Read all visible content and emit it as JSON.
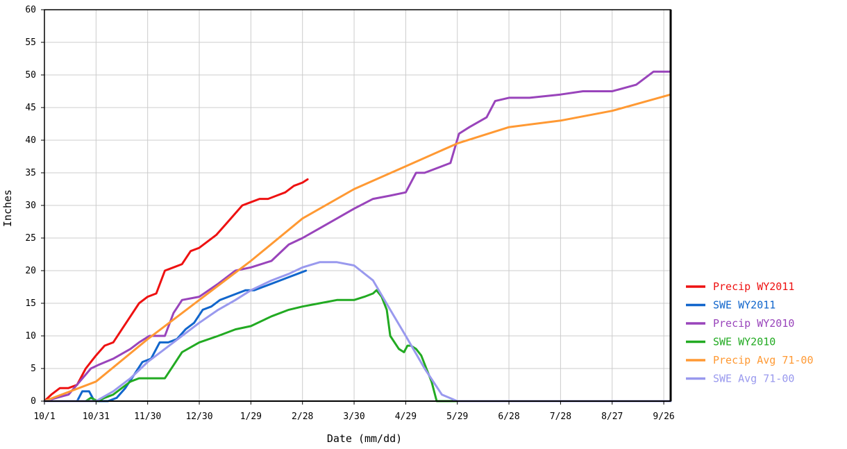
{
  "chart_data": {
    "type": "line",
    "title": "",
    "xlabel": "Date (mm/dd)",
    "ylabel": "Inches",
    "ylim": [
      0,
      60
    ],
    "xlim": [
      "10/1",
      "9/30"
    ],
    "yticks": [
      0,
      5,
      10,
      15,
      20,
      25,
      30,
      35,
      40,
      45,
      50,
      55,
      60
    ],
    "xticks": [
      "10/1",
      "10/31",
      "11/30",
      "12/30",
      "1/29",
      "2/28",
      "3/30",
      "4/29",
      "5/29",
      "6/28",
      "7/28",
      "8/27",
      "9/26"
    ],
    "grid": true,
    "legend_position": "bottom-right outside",
    "series": [
      {
        "name": "Precip WY2011",
        "color": "#ee1111",
        "x": [
          "10/1",
          "10/5",
          "10/10",
          "10/15",
          "10/20",
          "10/25",
          "10/28",
          "10/31",
          "11/5",
          "11/10",
          "11/15",
          "11/20",
          "11/25",
          "11/30",
          "12/5",
          "12/10",
          "12/15",
          "12/20",
          "12/25",
          "12/30",
          "1/4",
          "1/9",
          "1/14",
          "1/19",
          "1/24",
          "1/29",
          "2/3",
          "2/8",
          "2/13",
          "2/18",
          "2/23",
          "2/28",
          "3/3"
        ],
        "values": [
          0,
          1,
          2,
          2,
          2.5,
          5,
          6,
          7,
          8.5,
          9,
          11,
          13,
          15,
          16,
          16.5,
          20,
          20.5,
          21,
          23,
          23.5,
          24.5,
          25.5,
          27,
          28.5,
          30,
          30.5,
          31,
          31,
          31.5,
          32,
          33,
          33.5,
          34
        ]
      },
      {
        "name": "SWE WY2011",
        "color": "#1166cc",
        "x": [
          "10/1",
          "10/20",
          "10/23",
          "10/27",
          "10/30",
          "11/2",
          "11/7",
          "11/12",
          "11/17",
          "11/22",
          "11/27",
          "12/2",
          "12/7",
          "12/12",
          "12/17",
          "12/22",
          "12/27",
          "1/1",
          "1/6",
          "1/11",
          "1/16",
          "1/21",
          "1/26",
          "1/31",
          "2/5",
          "2/10",
          "2/15",
          "2/20",
          "2/25",
          "3/2"
        ],
        "values": [
          0,
          0,
          1.5,
          1.5,
          0,
          0,
          0,
          0.5,
          2,
          4,
          6,
          6.5,
          9,
          9,
          9.5,
          11,
          12,
          14,
          14.5,
          15.5,
          16,
          16.5,
          17,
          17,
          17.5,
          18,
          18.5,
          19,
          19.5,
          20
        ]
      },
      {
        "name": "Precip WY2010",
        "color": "#9944bb",
        "x": [
          "10/1",
          "10/15",
          "10/28",
          "11/1",
          "11/10",
          "11/20",
          "11/25",
          "12/1",
          "12/10",
          "12/15",
          "12/20",
          "12/30",
          "1/10",
          "1/20",
          "1/29",
          "2/10",
          "2/20",
          "2/28",
          "3/10",
          "3/20",
          "3/30",
          "4/10",
          "4/20",
          "4/29",
          "5/5",
          "5/10",
          "5/20",
          "5/25",
          "5/30",
          "6/5",
          "6/15",
          "6/20",
          "6/28",
          "7/10",
          "7/28",
          "8/10",
          "8/27",
          "9/10",
          "9/20",
          "9/30"
        ],
        "values": [
          0,
          1,
          5,
          5.5,
          6.5,
          8,
          9,
          10,
          10,
          13.5,
          15.5,
          16,
          18,
          20,
          20.5,
          21.5,
          24,
          25,
          26.5,
          28,
          29.5,
          31,
          31.5,
          32,
          35,
          35,
          36,
          36.5,
          41,
          42,
          43.5,
          46,
          46.5,
          46.5,
          47,
          47.5,
          47.5,
          48.5,
          50.5,
          50.5
        ]
      },
      {
        "name": "SWE WY2010",
        "color": "#22aa22",
        "x": [
          "10/1",
          "10/25",
          "10/28",
          "11/1",
          "11/5",
          "11/10",
          "11/15",
          "11/20",
          "11/25",
          "12/1",
          "12/10",
          "12/15",
          "12/20",
          "12/30",
          "1/10",
          "1/20",
          "1/29",
          "2/10",
          "2/20",
          "2/28",
          "3/10",
          "3/20",
          "3/30",
          "4/5",
          "4/10",
          "4/12",
          "4/15",
          "4/18",
          "4/20",
          "4/25",
          "4/28",
          "4/30",
          "5/2",
          "5/5",
          "5/8",
          "5/11",
          "5/14",
          "5/17",
          "5/20",
          "5/29",
          "6/28",
          "7/28",
          "8/27",
          "9/30"
        ],
        "values": [
          0,
          0,
          0.5,
          0,
          0.5,
          1,
          2,
          3,
          3.5,
          3.5,
          3.5,
          5.5,
          7.5,
          9,
          10,
          11,
          11.5,
          13,
          14,
          14.5,
          15,
          15.5,
          15.5,
          16,
          16.5,
          17,
          16,
          14,
          10,
          8,
          7.5,
          8.5,
          8.5,
          8,
          7,
          5,
          3,
          0,
          0,
          0,
          0,
          0,
          0,
          0
        ]
      },
      {
        "name": "Precip Avg 71-00",
        "color": "#ff9933",
        "x": [
          "10/1",
          "10/31",
          "11/30",
          "12/30",
          "1/29",
          "2/28",
          "3/30",
          "4/29",
          "5/29",
          "6/28",
          "7/28",
          "8/27",
          "9/30"
        ],
        "values": [
          0,
          3,
          9.5,
          15.5,
          21.5,
          28,
          32.5,
          36,
          39.5,
          42,
          43,
          44.5,
          47
        ]
      },
      {
        "name": "SWE Avg 71-00",
        "color": "#9999ee",
        "x": [
          "10/1",
          "10/31",
          "11/10",
          "11/20",
          "11/30",
          "12/10",
          "12/20",
          "12/30",
          "1/10",
          "1/20",
          "1/29",
          "2/10",
          "2/20",
          "2/28",
          "3/10",
          "3/20",
          "3/30",
          "4/10",
          "4/20",
          "4/29",
          "5/10",
          "5/20",
          "5/29",
          "9/30"
        ],
        "values": [
          0,
          0,
          1.5,
          3.5,
          6,
          8,
          10,
          12,
          14,
          15.5,
          17,
          18.5,
          19.5,
          20.5,
          21.3,
          21.3,
          20.8,
          18.5,
          14,
          10,
          5,
          1,
          0,
          0
        ]
      }
    ]
  }
}
